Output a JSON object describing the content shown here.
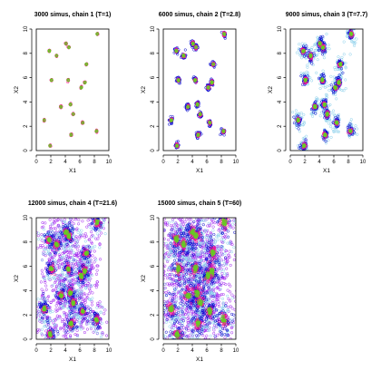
{
  "chart_data": [
    {
      "type": "scatter",
      "title": "3000 simus, chain 1 (T=1)",
      "xlabel": "X1",
      "ylabel": "X2",
      "xlim": [
        0,
        10
      ],
      "ylim": [
        0,
        10
      ],
      "xticks": [
        0,
        2,
        4,
        6,
        8,
        10
      ],
      "yticks": [
        0,
        2,
        4,
        6,
        8,
        10
      ],
      "spread": 0.45,
      "levels": [
        "red",
        "green"
      ],
      "grid": false
    },
    {
      "type": "scatter",
      "title": "6000 simus, chain 2 (T=2.8)",
      "xlabel": "X1",
      "ylabel": "X2",
      "xlim": [
        0,
        10
      ],
      "ylim": [
        0,
        10
      ],
      "xticks": [
        0,
        2,
        4,
        6,
        8,
        10
      ],
      "yticks": [
        0,
        2,
        4,
        6,
        8,
        10
      ],
      "spread": 0.75,
      "levels": [
        "blue",
        "red",
        "green"
      ],
      "grid": false
    },
    {
      "type": "scatter",
      "title": "9000 simus, chain 3 (T=7.7)",
      "xlabel": "X1",
      "ylabel": "X2",
      "xlim": [
        0,
        10
      ],
      "ylim": [
        0,
        10
      ],
      "xticks": [
        0,
        2,
        4,
        6,
        8,
        10
      ],
      "yticks": [
        0,
        2,
        4,
        6,
        8,
        10
      ],
      "spread": 1.1,
      "levels": [
        "lightblue",
        "blue",
        "red",
        "green"
      ],
      "grid": false
    },
    {
      "type": "scatter",
      "title": "12000 simus, chain 4 (T=21.6)",
      "xlabel": "X1",
      "ylabel": "X2",
      "xlim": [
        0,
        10
      ],
      "ylim": [
        0,
        10
      ],
      "xticks": [
        0,
        2,
        4,
        6,
        8,
        10
      ],
      "yticks": [
        0,
        2,
        4,
        6,
        8,
        10
      ],
      "spread": 1.8,
      "levels": [
        "purple",
        "lightblue",
        "blue",
        "red",
        "green"
      ],
      "grid": false
    },
    {
      "type": "scatter",
      "title": "15000 simus, chain 5 (T=60)",
      "xlabel": "X1",
      "ylabel": "X2",
      "xlim": [
        0,
        10
      ],
      "ylim": [
        0,
        10
      ],
      "xticks": [
        0,
        2,
        4,
        6,
        8,
        10
      ],
      "yticks": [
        0,
        2,
        4,
        6,
        8,
        10
      ],
      "spread": 3.0,
      "levels": [
        "purple",
        "lightblue",
        "blue",
        "red",
        "green"
      ],
      "grid": false
    }
  ],
  "modes": [
    {
      "x": 8.4,
      "y": 9.6
    },
    {
      "x": 1.8,
      "y": 8.2
    },
    {
      "x": 2.8,
      "y": 7.8
    },
    {
      "x": 4.1,
      "y": 8.8
    },
    {
      "x": 4.5,
      "y": 8.5
    },
    {
      "x": 6.9,
      "y": 7.1
    },
    {
      "x": 2.1,
      "y": 5.8
    },
    {
      "x": 4.4,
      "y": 5.8
    },
    {
      "x": 6.7,
      "y": 5.6
    },
    {
      "x": 6.2,
      "y": 5.2
    },
    {
      "x": 3.4,
      "y": 3.6
    },
    {
      "x": 4.7,
      "y": 3.8
    },
    {
      "x": 5.1,
      "y": 3.0
    },
    {
      "x": 1.1,
      "y": 2.5
    },
    {
      "x": 6.4,
      "y": 2.3
    },
    {
      "x": 4.8,
      "y": 1.3
    },
    {
      "x": 8.3,
      "y": 1.6
    },
    {
      "x": 1.9,
      "y": 0.4
    }
  ],
  "colors": {
    "purple": "#a020f0",
    "lightblue": "#87ceeb",
    "blue": "#0000cd",
    "red": "#ff1493",
    "green": "#66cc22"
  }
}
